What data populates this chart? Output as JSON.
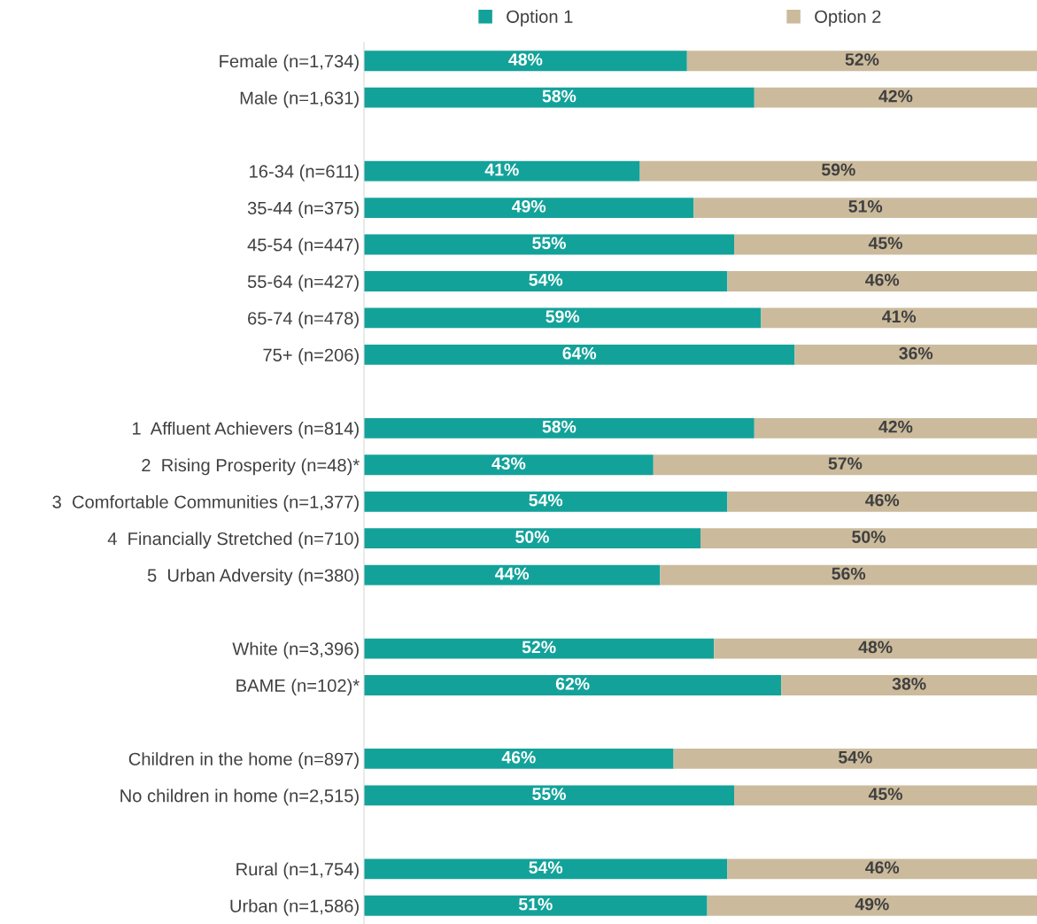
{
  "chart_data": {
    "type": "bar",
    "orientation": "horizontal",
    "stacked": true,
    "legend": "top",
    "tick_labels": "y",
    "xlim": [
      0,
      100
    ],
    "categories": [
      "Female (n=1,734)",
      "Male (n=1,631)",
      null,
      "16-34 (n=611)",
      "35-44 (n=375)",
      "45-54 (n=447)",
      "55-64 (n=427)",
      "65-74 (n=478)",
      "75+ (n=206)",
      null,
      "1  Affluent Achievers (n=814)",
      "2  Rising Prosperity (n=48)*",
      "3  Comfortable Communities (n=1,377)",
      "4  Financially Stretched (n=710)",
      "5  Urban Adversity (n=380)",
      null,
      "White (n=3,396)",
      "BAME (n=102)*",
      null,
      "Children in the home (n=897)",
      "No children in home (n=2,515)",
      null,
      "Rural (n=1,754)",
      "Urban (n=1,586)"
    ],
    "series": [
      {
        "name": "Option 1",
        "color": "#13a29a",
        "values": [
          48,
          58,
          null,
          41,
          49,
          55,
          54,
          59,
          64,
          null,
          58,
          43,
          54,
          50,
          44,
          null,
          52,
          62,
          null,
          46,
          55,
          null,
          54,
          51
        ],
        "value_labels": [
          "48%",
          "58%",
          null,
          "41%",
          "49%",
          "55%",
          "54%",
          "59%",
          "64%",
          null,
          "58%",
          "43%",
          "54%",
          "50%",
          "44%",
          null,
          "52%",
          "62%",
          null,
          "46%",
          "55%",
          null,
          "54%",
          "51%"
        ]
      },
      {
        "name": "Option 2",
        "color": "#cbbb9c",
        "values": [
          52,
          42,
          null,
          59,
          51,
          45,
          46,
          41,
          36,
          null,
          42,
          57,
          46,
          50,
          56,
          null,
          48,
          38,
          null,
          54,
          45,
          null,
          46,
          49
        ],
        "value_labels": [
          "52%",
          "42%",
          null,
          "59%",
          "51%",
          "45%",
          "46%",
          "41%",
          "36%",
          null,
          "42%",
          "57%",
          "46%",
          "50%",
          "56%",
          null,
          "48%",
          "38%",
          null,
          "54%",
          "45%",
          null,
          "46%",
          "49%"
        ]
      }
    ]
  }
}
